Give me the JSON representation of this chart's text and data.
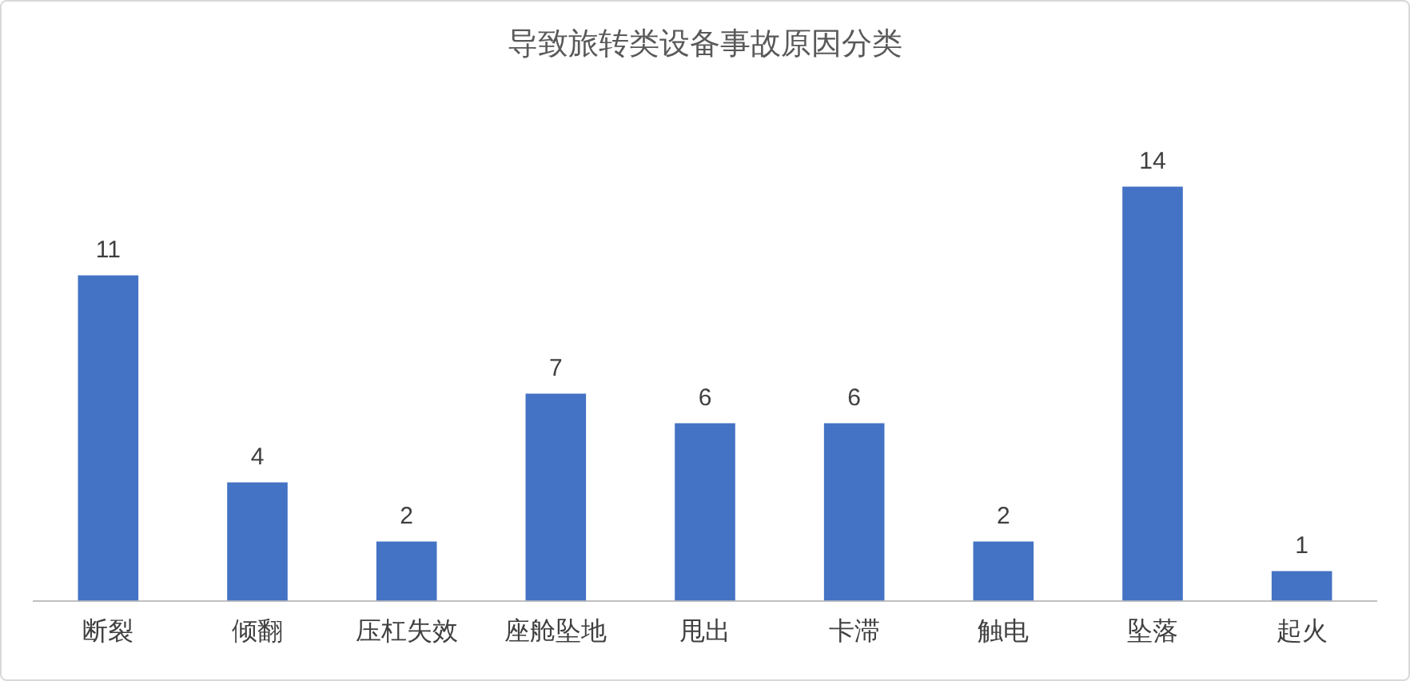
{
  "chart_data": {
    "type": "bar",
    "title": "导致旅转类设备事故原因分类",
    "categories": [
      "断裂",
      "倾翻",
      "压杠失效",
      "座舱坠地",
      "甩出",
      "卡滞",
      "触电",
      "坠落",
      "起火"
    ],
    "values": [
      11,
      4,
      2,
      7,
      6,
      6,
      2,
      14,
      1
    ],
    "color": "#4472c4",
    "data_labels": true,
    "grid": false,
    "legend": false
  }
}
